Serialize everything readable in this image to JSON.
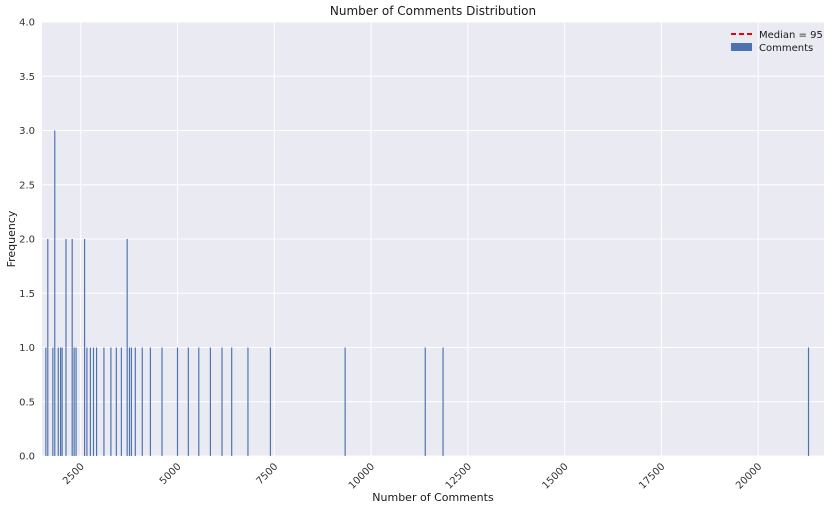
{
  "chart_data": {
    "type": "bar",
    "title": "Number of Comments Distribution",
    "xlabel": "Number of Comments",
    "ylabel": "Frequency",
    "xlim": [
      1500,
      21700
    ],
    "ylim": [
      0,
      4
    ],
    "x_ticks": [
      2500,
      5000,
      7500,
      10000,
      12500,
      15000,
      17500,
      20000
    ],
    "y_ticks": [
      "0.0",
      "0.5",
      "1.0",
      "1.5",
      "2.0",
      "2.5",
      "3.0",
      "3.5",
      "4.0"
    ],
    "grid": true,
    "legend_position": "top-right",
    "bar_width": 30,
    "series": [
      {
        "name": "Comments",
        "color": "#4c72b0",
        "bins": [
          {
            "x": 1600,
            "count": 1
          },
          {
            "x": 1650,
            "count": 2
          },
          {
            "x": 1780,
            "count": 1
          },
          {
            "x": 1830,
            "count": 3
          },
          {
            "x": 1920,
            "count": 1
          },
          {
            "x": 1980,
            "count": 1
          },
          {
            "x": 2020,
            "count": 1
          },
          {
            "x": 2120,
            "count": 2
          },
          {
            "x": 2280,
            "count": 2
          },
          {
            "x": 2330,
            "count": 1
          },
          {
            "x": 2380,
            "count": 1
          },
          {
            "x": 2600,
            "count": 2
          },
          {
            "x": 2660,
            "count": 1
          },
          {
            "x": 2750,
            "count": 1
          },
          {
            "x": 2830,
            "count": 1
          },
          {
            "x": 2910,
            "count": 1
          },
          {
            "x": 3100,
            "count": 1
          },
          {
            "x": 3280,
            "count": 1
          },
          {
            "x": 3420,
            "count": 1
          },
          {
            "x": 3550,
            "count": 1
          },
          {
            "x": 3700,
            "count": 2
          },
          {
            "x": 3760,
            "count": 1
          },
          {
            "x": 3810,
            "count": 1
          },
          {
            "x": 3910,
            "count": 1
          },
          {
            "x": 4090,
            "count": 1
          },
          {
            "x": 4300,
            "count": 1
          },
          {
            "x": 4600,
            "count": 1
          },
          {
            "x": 5000,
            "count": 1
          },
          {
            "x": 5280,
            "count": 1
          },
          {
            "x": 5550,
            "count": 1
          },
          {
            "x": 5850,
            "count": 1
          },
          {
            "x": 6150,
            "count": 1
          },
          {
            "x": 6400,
            "count": 1
          },
          {
            "x": 6820,
            "count": 1
          },
          {
            "x": 7400,
            "count": 1
          },
          {
            "x": 9330,
            "count": 1
          },
          {
            "x": 11400,
            "count": 1
          },
          {
            "x": 11860,
            "count": 1
          },
          {
            "x": 21300,
            "count": 1
          }
        ]
      }
    ],
    "median": {
      "label": "Median = 95",
      "value": 95,
      "color": "#e8000b"
    }
  }
}
